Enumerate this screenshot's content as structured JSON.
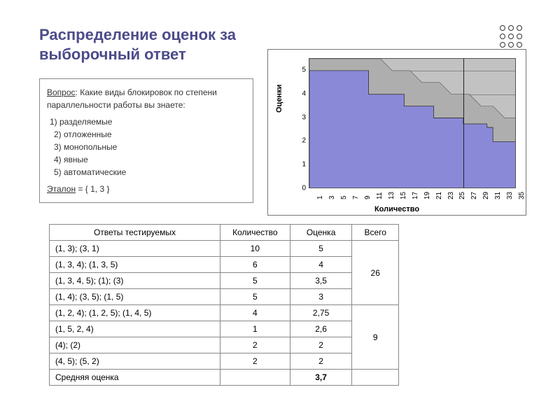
{
  "title": "Распределение оценок за выборочный ответ",
  "question": {
    "label": "Вопрос",
    "text": ": Какие виды блокировок по степени параллельности работы вы знаете:",
    "options": [
      "1) разделяемые",
      "2) отложенные",
      "3) монопольные",
      "4) явные",
      "5) автоматические"
    ],
    "etalon_label": "Эталон",
    "etalon_val": " = { 1, 3 }"
  },
  "chart": {
    "ylabel": "Оценки",
    "xlabel": "Количество",
    "ylim": [
      0,
      5.5
    ],
    "xlim": [
      0,
      35
    ],
    "yticks": [
      0,
      1,
      2,
      3,
      4,
      5
    ],
    "xticks": [
      1,
      3,
      5,
      7,
      9,
      11,
      13,
      15,
      17,
      19,
      21,
      23,
      25,
      27,
      29,
      31,
      33,
      35
    ],
    "blue_color": "#8a89d8",
    "gray_color": "#aeaeae",
    "bg_color": "#c2c2c2",
    "grid_color": "#888888",
    "vsep_x": 26,
    "series_blue": [
      {
        "x": 0,
        "y": 5
      },
      {
        "x": 10,
        "y": 5
      },
      {
        "x": 10,
        "y": 4
      },
      {
        "x": 16,
        "y": 4
      },
      {
        "x": 16,
        "y": 3.5
      },
      {
        "x": 21,
        "y": 3.5
      },
      {
        "x": 21,
        "y": 3
      },
      {
        "x": 26,
        "y": 3
      },
      {
        "x": 26,
        "y": 2.75
      },
      {
        "x": 30,
        "y": 2.75
      },
      {
        "x": 30,
        "y": 2.6
      },
      {
        "x": 31,
        "y": 2.6
      },
      {
        "x": 31,
        "y": 2
      },
      {
        "x": 35,
        "y": 2
      }
    ],
    "series_gray_top": [
      {
        "x": 0,
        "y": 5.5
      },
      {
        "x": 12,
        "y": 5.5
      },
      {
        "x": 14,
        "y": 5
      },
      {
        "x": 17,
        "y": 5
      },
      {
        "x": 19,
        "y": 4.5
      },
      {
        "x": 22,
        "y": 4.5
      },
      {
        "x": 24,
        "y": 4
      },
      {
        "x": 27,
        "y": 4
      },
      {
        "x": 29,
        "y": 3.5
      },
      {
        "x": 31,
        "y": 3.5
      },
      {
        "x": 33,
        "y": 3
      },
      {
        "x": 35,
        "y": 3
      }
    ]
  },
  "table": {
    "headers": [
      "Ответы тестируемых",
      "Количество",
      "Оценка",
      "Всего"
    ],
    "rows": [
      {
        "ans": "(1, 3);  (3, 1)",
        "cnt": "10",
        "grade": "5"
      },
      {
        "ans": "(1, 3, 4);  (1, 3, 5)",
        "cnt": "6",
        "grade": "4"
      },
      {
        "ans": "(1, 3, 4, 5);  (1);  (3)",
        "cnt": "5",
        "grade": "3,5"
      },
      {
        "ans": "(1, 4);  (3, 5);  (1, 5)",
        "cnt": "5",
        "grade": "3"
      },
      {
        "ans": "(1, 2, 4);  (1, 2, 5);  (1, 4, 5)",
        "cnt": "4",
        "grade": "2,75"
      },
      {
        "ans": "(1, 5, 2, 4)",
        "cnt": "1",
        "grade": "2,6"
      },
      {
        "ans": "(4);  (2)",
        "cnt": "2",
        "grade": "2"
      },
      {
        "ans": "(4, 5);  (5, 2)",
        "cnt": "2",
        "grade": "2"
      }
    ],
    "total1": "26",
    "total2": "9",
    "avg_label": "Средняя оценка",
    "avg_val": "3,7"
  }
}
